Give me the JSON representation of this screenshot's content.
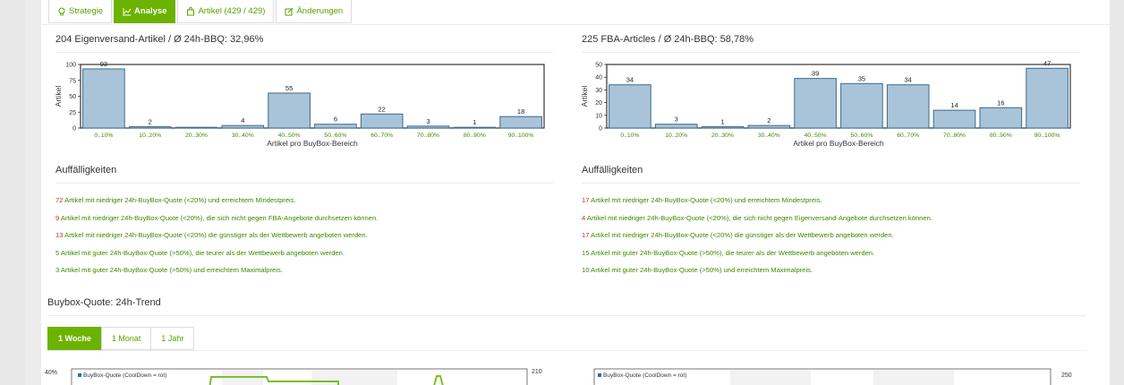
{
  "tabs": [
    {
      "label": "Strategie",
      "icon": "bulb-icon",
      "active": false
    },
    {
      "label": "Analyse",
      "icon": "chart-icon",
      "active": true
    },
    {
      "label": "Artikel (429 / 429)",
      "icon": "bag-icon",
      "active": false
    },
    {
      "label": "Änderungen",
      "icon": "edit-icon",
      "active": false
    }
  ],
  "left": {
    "title": "204 Eigenversand-Artikel / Ø 24h-BBQ: 32,96%",
    "issues_title": "Auffälligkeiten",
    "issues": [
      {
        "num": "72",
        "text": " Artikel mit niedriger 24h-BuyBox-Quote (<20%) und erreichtem Mindestpreis.",
        "highlight": true
      },
      {
        "num": "9",
        "text": " Artikel mit niedriger 24h-BuyBox-Quote (<20%), die sich nicht gegen FBA-Angebote durchsetzen können.",
        "highlight": true
      },
      {
        "num": "13",
        "text": " Artikel mit niedriger 24h-BuyBox-Quote (<20%) die günstiger als der Wettbewerb angeboten werden.",
        "highlight": true
      },
      {
        "num": "5",
        "text": " Artikel mit guter 24h-BuyBox-Quote (>50%), die teurer als der Wettbewerb angeboten werden.",
        "highlight": false
      },
      {
        "num": "3",
        "text": " Artikel mit guter 24h-BuyBox-Quote (>50%) und erreichtem Maximalpreis.",
        "highlight": false
      }
    ]
  },
  "right": {
    "title": "225 FBA-Articles / Ø 24h-BBQ: 58,78%",
    "issues_title": "Auffälligkeiten",
    "issues": [
      {
        "num": "17",
        "text": " Artikel mit niedriger 24h-BuyBox-Quote (<20%) und erreichtem Mindestpreis.",
        "highlight": true
      },
      {
        "num": "4",
        "text": " Artikel mit niedriger 24h-BuyBox-Quote (<20%), die sich nicht gegen Eigenversand-Angebote durchsetzen können.",
        "highlight": true
      },
      {
        "num": "17",
        "text": " Artikel mit niedriger 24h-BuyBox-Quote (<20%) die günstiger als der Wettbewerb angeboten werden.",
        "highlight": true
      },
      {
        "num": "15",
        "text": " Artikel mit guter 24h-BuyBox-Quote (>50%), die teurer als der Wettbewerb angeboten werden.",
        "highlight": false
      },
      {
        "num": "10",
        "text": " Artikel mit guter 24h-BuyBox-Quote (>50%) und erreichtem Maximalpreis.",
        "highlight": false
      }
    ]
  },
  "trend": {
    "title": "Buybox-Quote: 24h-Trend",
    "tabs": [
      "1 Woche",
      "1 Monat",
      "1 Jahr"
    ],
    "active_tab": 0,
    "left_legend": "BuyBox-Quote (CoolDown = rot)",
    "right_legend": "BuyBox-Quote (CoolDown = rot)",
    "left_y_top": "40%",
    "left_y2_top": "210",
    "right_y2_top": "250"
  },
  "chart_data": [
    {
      "type": "bar",
      "categories": [
        "0..10%",
        "10..20%",
        "20..30%",
        "30..40%",
        "40..50%",
        "50..60%",
        "60..70%",
        "70..80%",
        "80..90%",
        "90..100%"
      ],
      "values": [
        93,
        2,
        0,
        4,
        55,
        6,
        22,
        3,
        1,
        18
      ],
      "value_labels": [
        "93",
        "2",
        "",
        "4",
        "55",
        "6",
        "22",
        "3",
        "1",
        "18"
      ],
      "xlabel": "Artikel pro BuyBox-Bereich",
      "ylabel": "Artikel",
      "ylim": [
        0,
        100
      ],
      "yticks": [
        0,
        25,
        50,
        75,
        100
      ],
      "bar_color": "#a9c4d8",
      "bar_stroke": "#3d6a8e"
    },
    {
      "type": "bar",
      "categories": [
        "0..10%",
        "10..20%",
        "20..30%",
        "30..40%",
        "40..50%",
        "50..60%",
        "60..70%",
        "70..80%",
        "80..90%",
        "90..100%"
      ],
      "values": [
        34,
        3,
        1,
        2,
        39,
        35,
        34,
        14,
        16,
        47
      ],
      "value_labels": [
        "34",
        "3",
        "1",
        "2",
        "39",
        "35",
        "34",
        "14",
        "16",
        "47"
      ],
      "xlabel": "Artikel pro BuyBox-Bereich",
      "ylabel": "Artikel",
      "ylim": [
        0,
        50
      ],
      "yticks": [
        0,
        10,
        20,
        30,
        40,
        50
      ],
      "bar_color": "#a9c4d8",
      "bar_stroke": "#3d6a8e"
    }
  ]
}
